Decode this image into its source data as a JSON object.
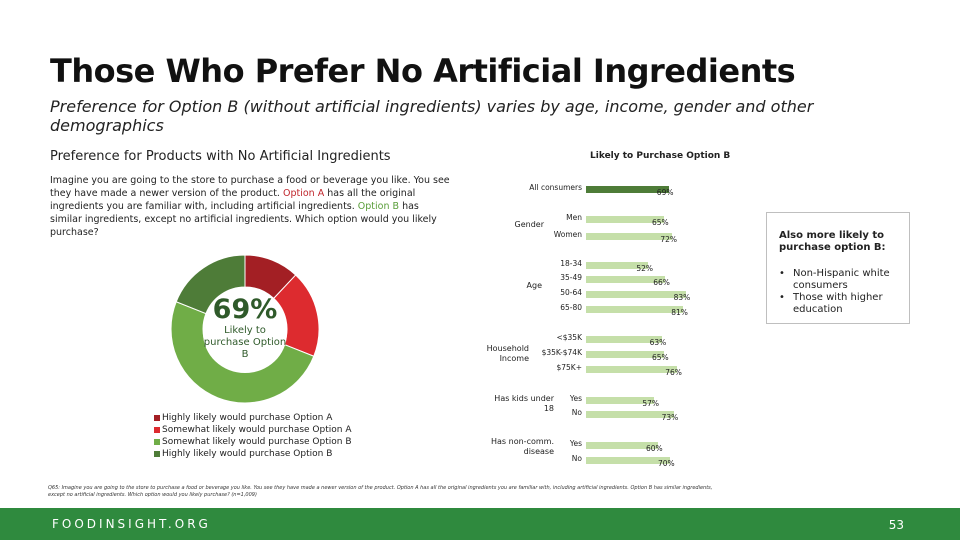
{
  "slide": {
    "title": "Those Who Prefer No Artificial Ingredients",
    "subtitle": "Preference for Option B (without artificial ingredients) varies by age, income, gender and other demographics"
  },
  "left_panel": {
    "section_title": "Preference for Products with No Artificial Ingredients",
    "prompt_part1": "Imagine you are going to the store to purchase a food or beverage you like. You see they have made a newer version of the product. ",
    "prompt_option_a": "Option A",
    "prompt_part2": " has all the original ingredients you are familiar with, including artificial ingredients. ",
    "prompt_option_b": "Option B",
    "prompt_part3": " has similar ingredients, except no artificial ingredients. Which option would you likely purchase?",
    "donut_center_value": "69%",
    "donut_center_label": "Likely to purchase Option B"
  },
  "right_panel": {
    "header": "Likely to Purchase Option B"
  },
  "callout": {
    "title": "Also more likely to purchase option B:",
    "items": [
      "Non-Hispanic white consumers",
      "Those with higher education"
    ]
  },
  "source_note": "Q65: Imagine you are going to the store to purchase a food or beverage you like. You see they have made a newer version of the product. Option A has all the original ingredients you are familiar with, including artificial ingredients. Option B has similar ingredients, except no artificial ingredients. Which option would you likely purchase? (n=1,009)",
  "footer": {
    "logo": "FOODINSIGHT.ORG",
    "page_number": "53"
  },
  "colors": {
    "dark_red": "#a31f24",
    "red": "#dd2b2f",
    "light_green": "#70ad47",
    "dark_green": "#4e7c38",
    "bar_light": "#c5dfa9",
    "bar_dark": "#4e7c38",
    "footer_green": "#2f8a3e"
  },
  "chart_data": [
    {
      "type": "pie",
      "subtype": "donut",
      "title": "Preference for Products with No Artificial Ingredients",
      "center_value": "69%",
      "center_label": "Likely to purchase Option B",
      "legend_position": "bottom-left",
      "slices": [
        {
          "label": "Highly likely would purchase Option A",
          "value": 12,
          "color": "#a31f24"
        },
        {
          "label": "Somewhat likely would purchase Option A",
          "value": 19,
          "color": "#dd2b2f"
        },
        {
          "label": "Somewhat likely would purchase Option B",
          "value": 50,
          "color": "#70ad47"
        },
        {
          "label": "Highly likely would purchase Option B",
          "value": 19,
          "color": "#4e7c38"
        }
      ]
    },
    {
      "type": "bar",
      "orientation": "horizontal",
      "title": "Likely to Purchase Option B",
      "xlim": [
        0,
        100
      ],
      "grid": false,
      "groups": [
        {
          "name": "",
          "rows": [
            {
              "label": "All consumers",
              "value": 69,
              "display": "69%",
              "highlight": true
            }
          ]
        },
        {
          "name": "Gender",
          "rows": [
            {
              "label": "Men",
              "value": 65,
              "display": "65%"
            },
            {
              "label": "Women",
              "value": 72,
              "display": "72%"
            }
          ]
        },
        {
          "name": "Age",
          "rows": [
            {
              "label": "18-34",
              "value": 52,
              "display": "52%"
            },
            {
              "label": "35-49",
              "value": 66,
              "display": "66%"
            },
            {
              "label": "50-64",
              "value": 83,
              "display": "83%"
            },
            {
              "label": "65-80",
              "value": 81,
              "display": "81%"
            }
          ]
        },
        {
          "name": "Household Income",
          "rows": [
            {
              "label": "<$35K",
              "value": 63,
              "display": "63%"
            },
            {
              "label": "$35K-$74K",
              "value": 65,
              "display": "65%"
            },
            {
              "label": "$75K+",
              "value": 76,
              "display": "76%"
            }
          ]
        },
        {
          "name": "Has kids under 18",
          "rows": [
            {
              "label": "Yes",
              "value": 57,
              "display": "57%"
            },
            {
              "label": "No",
              "value": 73,
              "display": "73%"
            }
          ]
        },
        {
          "name": "Has non-comm. disease",
          "rows": [
            {
              "label": "Yes",
              "value": 60,
              "display": "60%"
            },
            {
              "label": "No",
              "value": 70,
              "display": "70%"
            }
          ]
        }
      ]
    }
  ]
}
